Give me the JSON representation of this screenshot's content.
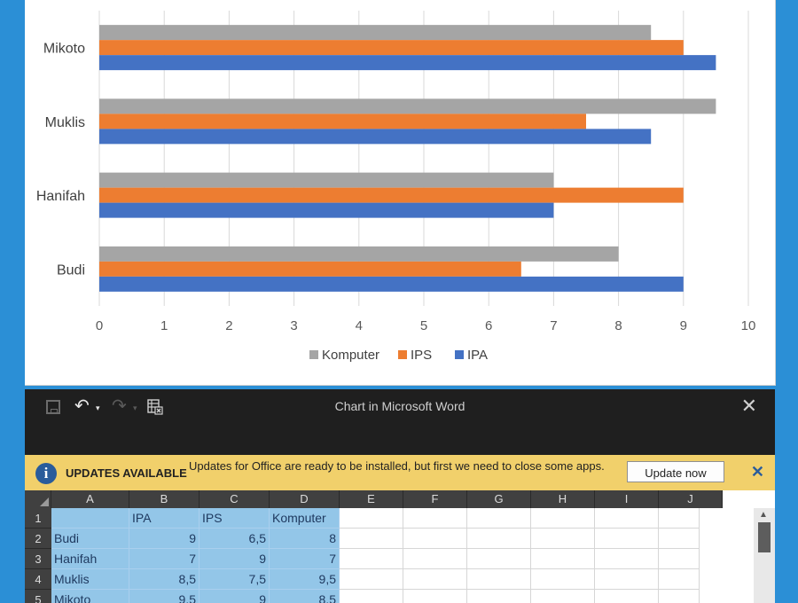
{
  "chart_data": {
    "type": "bar",
    "orientation": "horizontal",
    "categories": [
      "Mikoto",
      "Muklis",
      "Hanifah",
      "Budi"
    ],
    "series": [
      {
        "name": "Komputer",
        "color": "#a5a5a5",
        "values": [
          8.5,
          9.5,
          7,
          8
        ]
      },
      {
        "name": "IPS",
        "color": "#ed7d31",
        "values": [
          9,
          7.5,
          9,
          6.5
        ]
      },
      {
        "name": "IPA",
        "color": "#4472c4",
        "values": [
          9.5,
          8.5,
          7,
          9
        ]
      }
    ],
    "xticks": [
      "0",
      "1",
      "2",
      "3",
      "4",
      "5",
      "6",
      "7",
      "8",
      "9",
      "10"
    ],
    "xlim": [
      0,
      10
    ],
    "grid": "vertical",
    "legend_position": "bottom"
  },
  "excel": {
    "window_title": "Chart in Microsoft Word",
    "close_glyph": "✕",
    "undo_glyph": "↶",
    "redo_glyph": "↷",
    "dropdown_glyph": "▾",
    "updates_title": "UPDATES AVAILABLE",
    "updates_message": "Updates for Office are ready to be installed, but first we need to close some apps.",
    "update_button": "Update now",
    "dismiss_glyph": "✕",
    "info_glyph": "i",
    "columns": [
      "A",
      "B",
      "C",
      "D",
      "E",
      "F",
      "G",
      "H",
      "I",
      "J"
    ],
    "rows": [
      {
        "num": "1",
        "cells": [
          "",
          "IPA",
          "IPS",
          "Komputer"
        ]
      },
      {
        "num": "2",
        "cells": [
          "Budi",
          "9",
          "6,5",
          "8"
        ]
      },
      {
        "num": "3",
        "cells": [
          "Hanifah",
          "7",
          "9",
          "7"
        ]
      },
      {
        "num": "4",
        "cells": [
          "Muklis",
          "8,5",
          "7,5",
          "9,5"
        ]
      },
      {
        "num": "5",
        "cells": [
          "Mikoto",
          "9,5",
          "9",
          "8,5"
        ]
      }
    ]
  }
}
